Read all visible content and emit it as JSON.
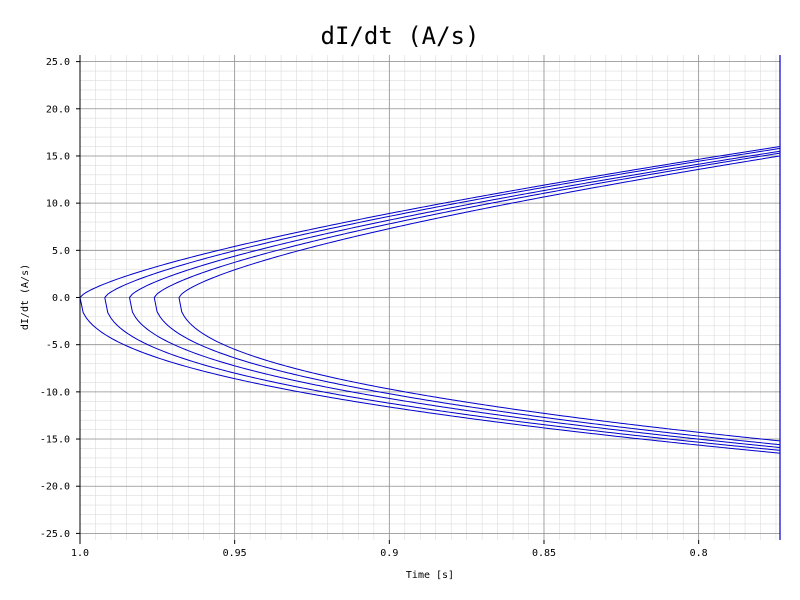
{
  "chart_data": {
    "type": "line",
    "title": "dI/dt (A/s)",
    "xlabel": "Time [s]",
    "ylabel": "dI/dt (A/s)",
    "x_axis_reversed": true,
    "xlim": [
      1.0,
      0.7737
    ],
    "ylim": [
      -25.7,
      25.7
    ],
    "grid": true,
    "minor_grid": true,
    "legend": "none",
    "line_color": "#0000cc",
    "x_ticks": [
      1.0,
      0.95,
      0.9,
      0.85,
      0.8
    ],
    "x_tick_labels": [
      "1.0",
      "0.95",
      "0.9",
      "0.85",
      "0.8"
    ],
    "y_ticks": [
      25,
      20,
      15,
      10,
      5,
      0,
      -5,
      -10,
      -15,
      -20,
      -25
    ],
    "y_tick_labels": [
      "25.0",
      "20.0",
      "15.0",
      "10.0",
      "5.0",
      "0.0",
      "-5.0",
      "-10.0",
      "-15.0",
      "-20.0",
      "-25.0"
    ],
    "series": [
      {
        "vertex_x": 1.0,
        "upper": [
          [
            1.0,
            1.0
          ],
          [
            0.9,
            8.9
          ],
          [
            0.7737,
            16.0
          ]
        ],
        "lower": [
          [
            1.0,
            -1.0
          ],
          [
            0.9,
            -11.6
          ],
          [
            0.7737,
            -16.5
          ]
        ]
      },
      {
        "vertex_x": 0.992,
        "upper": [
          [
            0.992,
            0.0
          ],
          [
            0.9,
            8.6
          ],
          [
            0.7737,
            15.8
          ]
        ],
        "lower": [
          [
            0.992,
            0.0
          ],
          [
            0.9,
            -11.2
          ],
          [
            0.7737,
            -16.2
          ]
        ]
      },
      {
        "vertex_x": 0.984,
        "upper": [
          [
            0.984,
            0.0
          ],
          [
            0.9,
            8.2
          ],
          [
            0.7737,
            15.5
          ]
        ],
        "lower": [
          [
            0.984,
            0.0
          ],
          [
            0.9,
            -10.7
          ],
          [
            0.7737,
            -15.9
          ]
        ]
      },
      {
        "vertex_x": 0.976,
        "upper": [
          [
            0.976,
            0.0
          ],
          [
            0.9,
            7.8
          ],
          [
            0.7737,
            15.3
          ]
        ],
        "lower": [
          [
            0.976,
            0.0
          ],
          [
            0.9,
            -10.2
          ],
          [
            0.7737,
            -15.6
          ]
        ]
      },
      {
        "vertex_x": 0.968,
        "upper": [
          [
            0.968,
            0.0
          ],
          [
            0.9,
            7.3
          ],
          [
            0.7737,
            15.0
          ]
        ],
        "lower": [
          [
            0.968,
            0.0
          ],
          [
            0.9,
            -9.7
          ],
          [
            0.7737,
            -15.2
          ]
        ]
      }
    ]
  }
}
